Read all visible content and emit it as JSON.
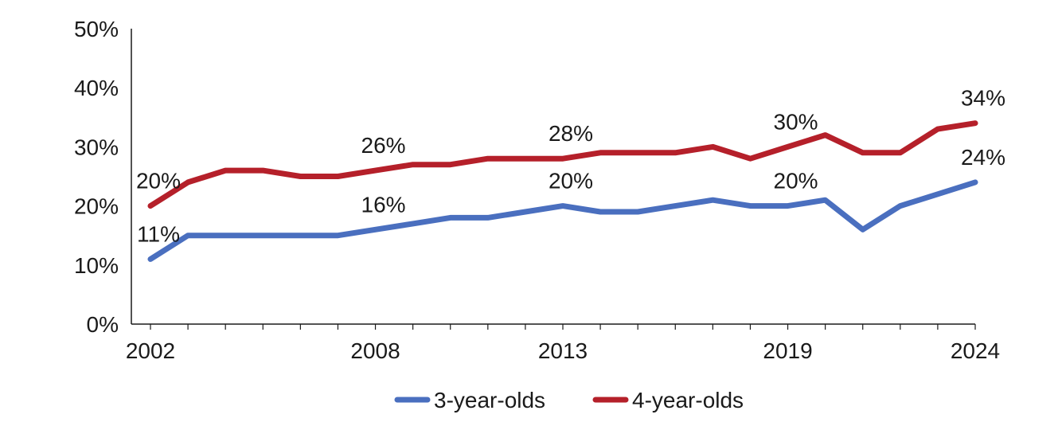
{
  "chart_data": {
    "type": "line",
    "title": "",
    "xlabel": "",
    "ylabel": "",
    "ylim": [
      0,
      50
    ],
    "y_ticks": [
      "0%",
      "10%",
      "20%",
      "30%",
      "40%",
      "50%"
    ],
    "y_tick_values": [
      0,
      10,
      20,
      30,
      40,
      50
    ],
    "x": [
      2002,
      2003,
      2004,
      2005,
      2006,
      2007,
      2008,
      2009,
      2010,
      2011,
      2012,
      2013,
      2014,
      2015,
      2016,
      2017,
      2018,
      2019,
      2020,
      2021,
      2022,
      2023,
      2024
    ],
    "x_tick_labels": [
      "2002",
      "2008",
      "2013",
      "2019",
      "2024"
    ],
    "x_tick_label_values": [
      2002,
      2008,
      2013,
      2019,
      2024
    ],
    "grid": false,
    "legend_position": "bottom",
    "series": [
      {
        "name": "3-year-olds",
        "color": "#4a6fbf",
        "values": [
          11,
          15,
          15,
          15,
          15,
          15,
          16,
          17,
          18,
          18,
          19,
          20,
          19,
          19,
          20,
          21,
          20,
          20,
          21,
          16,
          20,
          22,
          24
        ],
        "labels": [
          {
            "x": 2002,
            "text": "11%",
            "value": 11
          },
          {
            "x": 2008,
            "text": "16%",
            "value": 16
          },
          {
            "x": 2013,
            "text": "20%",
            "value": 20
          },
          {
            "x": 2019,
            "text": "20%",
            "value": 20
          },
          {
            "x": 2024,
            "text": "24%",
            "value": 24
          }
        ]
      },
      {
        "name": "4-year-olds",
        "color": "#b5202a",
        "values": [
          20,
          24,
          26,
          26,
          25,
          25,
          26,
          27,
          27,
          28,
          28,
          28,
          29,
          29,
          29,
          30,
          28,
          30,
          32,
          29,
          29,
          33,
          34
        ],
        "labels": [
          {
            "x": 2002,
            "text": "20%",
            "value": 20
          },
          {
            "x": 2008,
            "text": "26%",
            "value": 26
          },
          {
            "x": 2013,
            "text": "28%",
            "value": 28
          },
          {
            "x": 2019,
            "text": "30%",
            "value": 30
          },
          {
            "x": 2024,
            "text": "34%",
            "value": 34
          }
        ]
      }
    ]
  }
}
